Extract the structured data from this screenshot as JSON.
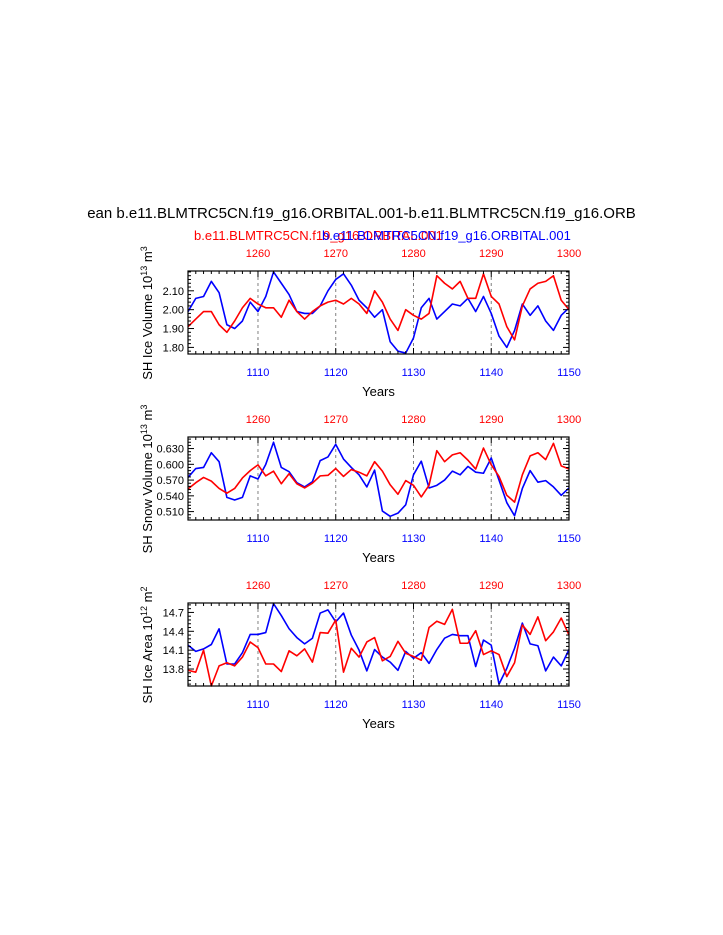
{
  "title": "ean b.e11.BLMTRC5CN.f19_g16.ORBITAL.001-b.e11.BLMTRC5CN.f19_g16.ORB",
  "subtitle_red": "b.e11.BLMTRC5CN.f19_g16.ORBITAL.001",
  "subtitle_blue": "b.e11.BLMTRC5CN.f19_g16.ORBITAL.001",
  "colors": {
    "series_red": "#ff0000",
    "series_blue": "#0000ff",
    "axis": "#000000",
    "grid": "#808080"
  },
  "chart_data": [
    {
      "type": "line",
      "panel": "sh-ice-volume",
      "ylabel": "SH Ice Volume 10",
      "ylabel_exp": "13",
      "ylabel_unit": " m",
      "ylabel_unit_exp": "3",
      "xlabel": "Years",
      "xlim": [
        1101,
        1150
      ],
      "ylim": [
        1.765,
        2.205
      ],
      "yticks": [
        1.8,
        1.9,
        2.0,
        2.1
      ],
      "ytick_labels": [
        "1.80",
        "1.90",
        "2.00",
        "2.10"
      ],
      "xticks_bottom": [
        1110,
        1120,
        1130,
        1140,
        1150
      ],
      "xticks_top": [
        1260,
        1270,
        1280,
        1290,
        1300
      ],
      "series": [
        {
          "name": "b.e11.BLMTRC5CN.f19_g16.ORBITAL.001",
          "color": "blue",
          "values": [
            1.99,
            2.06,
            2.07,
            2.15,
            2.09,
            1.92,
            1.9,
            1.94,
            2.04,
            1.99,
            2.07,
            2.2,
            2.14,
            2.08,
            1.99,
            1.98,
            1.98,
            2.02,
            2.1,
            2.16,
            2.19,
            2.13,
            2.05,
            2.01,
            1.96,
            2.0,
            1.83,
            1.78,
            1.77,
            1.85,
            2.01,
            2.06,
            1.95,
            1.99,
            2.03,
            2.02,
            2.06,
            1.99,
            2.07,
            1.98,
            1.86,
            1.8,
            1.89,
            2.03,
            1.97,
            2.02,
            1.94,
            1.89,
            1.97,
            2.01
          ]
        },
        {
          "name": "b.e11.BLMTRC5CN.f19_g16.ORBITAL.001",
          "color": "red",
          "values": [
            1.91,
            1.95,
            1.99,
            1.99,
            1.92,
            1.88,
            1.94,
            2.01,
            2.06,
            2.03,
            2.01,
            2.01,
            1.96,
            2.05,
            1.99,
            1.95,
            1.99,
            2.02,
            2.04,
            2.05,
            2.03,
            2.06,
            2.03,
            1.98,
            2.1,
            2.04,
            1.95,
            1.89,
            2.0,
            1.97,
            1.95,
            1.98,
            2.18,
            2.14,
            2.11,
            2.15,
            2.06,
            2.06,
            2.19,
            2.07,
            2.03,
            1.91,
            1.84,
            2.02,
            2.11,
            2.14,
            2.15,
            2.18,
            2.05,
            2.0
          ]
        }
      ]
    },
    {
      "type": "line",
      "panel": "sh-snow-volume",
      "ylabel": "SH Snow Volume 10",
      "ylabel_exp": "13",
      "ylabel_unit": " m",
      "ylabel_unit_exp": "3",
      "xlabel": "Years",
      "xlim": [
        1101,
        1150
      ],
      "ylim": [
        0.494,
        0.652
      ],
      "yticks": [
        0.51,
        0.54,
        0.57,
        0.6,
        0.63
      ],
      "ytick_labels": [
        "0.510",
        "0.540",
        "0.570",
        "0.600",
        "0.630"
      ],
      "xticks_bottom": [
        1110,
        1120,
        1130,
        1140,
        1150
      ],
      "xticks_top": [
        1260,
        1270,
        1280,
        1290,
        1300
      ],
      "series": [
        {
          "name": "b.e11.BLMTRC5CN.f19_g16.ORBITAL.001",
          "color": "blue",
          "values": [
            0.575,
            0.592,
            0.594,
            0.622,
            0.605,
            0.537,
            0.532,
            0.537,
            0.578,
            0.572,
            0.6,
            0.642,
            0.594,
            0.586,
            0.565,
            0.557,
            0.567,
            0.607,
            0.614,
            0.638,
            0.61,
            0.594,
            0.58,
            0.557,
            0.589,
            0.511,
            0.501,
            0.507,
            0.523,
            0.58,
            0.606,
            0.555,
            0.56,
            0.57,
            0.587,
            0.58,
            0.596,
            0.585,
            0.583,
            0.612,
            0.57,
            0.527,
            0.502,
            0.554,
            0.588,
            0.566,
            0.569,
            0.557,
            0.541,
            0.555
          ]
        },
        {
          "name": "b.e11.BLMTRC5CN.f19_g16.ORBITAL.001",
          "color": "red",
          "values": [
            0.553,
            0.565,
            0.575,
            0.568,
            0.554,
            0.545,
            0.554,
            0.574,
            0.588,
            0.599,
            0.578,
            0.587,
            0.563,
            0.582,
            0.563,
            0.555,
            0.564,
            0.578,
            0.579,
            0.592,
            0.577,
            0.59,
            0.585,
            0.578,
            0.605,
            0.587,
            0.561,
            0.543,
            0.569,
            0.56,
            0.538,
            0.56,
            0.626,
            0.605,
            0.618,
            0.622,
            0.608,
            0.591,
            0.631,
            0.599,
            0.577,
            0.541,
            0.528,
            0.58,
            0.616,
            0.622,
            0.609,
            0.64,
            0.597,
            0.591
          ]
        }
      ]
    },
    {
      "type": "line",
      "panel": "sh-ice-area",
      "ylabel": "SH Ice Area 10",
      "ylabel_exp": "12",
      "ylabel_unit": " m",
      "ylabel_unit_exp": "2",
      "xlabel": "Years",
      "xlim": [
        1101,
        1150
      ],
      "ylim": [
        13.53,
        14.85
      ],
      "yticks": [
        13.8,
        14.1,
        14.4,
        14.7
      ],
      "ytick_labels": [
        "13.8",
        "14.1",
        "14.4",
        "14.7"
      ],
      "xticks_bottom": [
        1110,
        1120,
        1130,
        1140,
        1150
      ],
      "xticks_top": [
        1260,
        1270,
        1280,
        1290,
        1300
      ],
      "series": [
        {
          "name": "b.e11.BLMTRC5CN.f19_g16.ORBITAL.001",
          "color": "blue",
          "values": [
            14.18,
            14.08,
            14.12,
            14.19,
            14.44,
            13.88,
            13.88,
            14.06,
            14.35,
            14.35,
            14.38,
            14.84,
            14.65,
            14.44,
            14.3,
            14.2,
            14.29,
            14.69,
            14.74,
            14.55,
            14.69,
            14.34,
            14.1,
            13.77,
            14.11,
            13.99,
            13.91,
            13.78,
            14.08,
            13.97,
            14.06,
            13.89,
            14.11,
            14.29,
            14.35,
            14.33,
            14.33,
            13.84,
            14.26,
            14.18,
            13.56,
            13.81,
            14.13,
            14.53,
            14.2,
            14.17,
            13.77,
            13.99,
            13.85,
            14.11
          ]
        },
        {
          "name": "b.e11.BLMTRC5CN.f19_g16.ORBITAL.001",
          "color": "red",
          "values": [
            13.78,
            13.75,
            14.1,
            13.53,
            13.85,
            13.9,
            13.85,
            13.99,
            14.23,
            14.14,
            13.88,
            13.88,
            13.76,
            14.09,
            14.01,
            14.12,
            13.91,
            14.38,
            14.37,
            14.58,
            13.75,
            14.13,
            13.99,
            14.23,
            14.3,
            13.93,
            14.0,
            14.24,
            14.05,
            14.0,
            13.94,
            14.46,
            14.56,
            14.51,
            14.75,
            14.21,
            14.21,
            14.41,
            14.03,
            14.09,
            14.03,
            13.68,
            13.9,
            14.5,
            14.35,
            14.63,
            14.25,
            14.39,
            14.61,
            14.34
          ]
        }
      ]
    }
  ]
}
